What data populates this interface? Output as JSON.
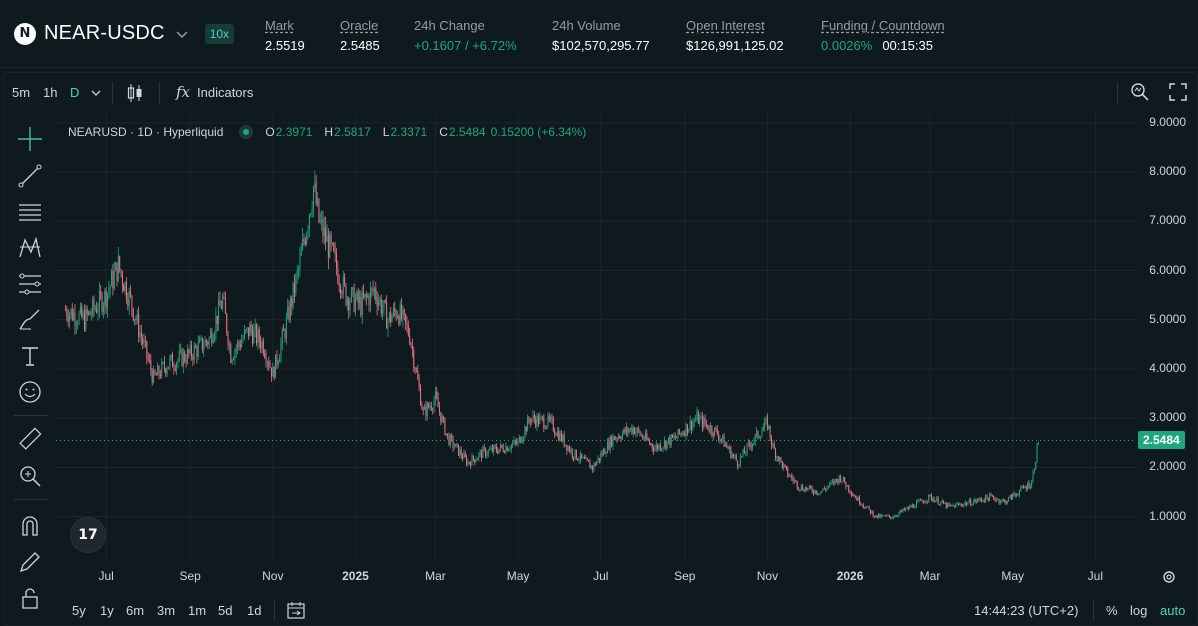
{
  "header": {
    "pair_logo_letter": "N",
    "pair_name": "NEAR-USDC",
    "leverage": "10x",
    "stats": [
      {
        "label": "Mark",
        "value": "2.5519"
      },
      {
        "label": "Oracle",
        "value": "2.5485"
      },
      {
        "label": "24h Change",
        "value": "+0.1607 / +6.72%"
      },
      {
        "label": "24h Volume",
        "value": "$102,570,295.77"
      },
      {
        "label": "Open Interest",
        "value": "$126,991,125.02"
      },
      {
        "label": "Funding / Countdown",
        "value": "0.0026%",
        "value2": "00:15:35"
      }
    ]
  },
  "toolbar": {
    "intervals": [
      "5m",
      "1h",
      "D"
    ],
    "active_interval": "D",
    "indicators_label": "Indicators",
    "fx_label": "fx"
  },
  "legend": {
    "symbol": "NEARUSD · 1D · Hyperliquid",
    "o_label": "O",
    "o": "2.3971",
    "h_label": "H",
    "h": "2.5817",
    "l_label": "L",
    "l": "2.3371",
    "c_label": "C",
    "c": "2.5484",
    "change": "0.15200 (+6.34%)"
  },
  "colors": {
    "up": "#1fa67d",
    "down": "#ed7088",
    "accent": "#50d2c1",
    "background": "#0f1a1f"
  },
  "chart_data": {
    "type": "candlestick",
    "title": "NEARUSD · 1D · Hyperliquid",
    "y_ticks": [
      "9.0000",
      "8.0000",
      "7.0000",
      "6.0000",
      "5.0000",
      "4.0000",
      "3.0000",
      "2.0000",
      "1.0000"
    ],
    "ylim": [
      0.1,
      9.2
    ],
    "x_ticks": [
      "Jul",
      "Sep",
      "Nov",
      "2025",
      "Mar",
      "May",
      "Jul",
      "Sep",
      "Nov",
      "2026",
      "Mar",
      "May",
      "Jul"
    ],
    "x_ticks_bold": [
      "2025",
      "2026"
    ],
    "last_price": "2.5484",
    "last_price_value": 2.5484,
    "series": [
      {
        "x": [
          "2024-06-01",
          "2024-06-15",
          "2024-07-01",
          "2024-07-10",
          "2024-07-20",
          "2024-08-05",
          "2024-08-15",
          "2024-09-01",
          "2024-09-15",
          "2024-09-25",
          "2024-10-01",
          "2024-10-15",
          "2024-10-25",
          "2024-11-01",
          "2024-11-10",
          "2024-11-20",
          "2024-12-01",
          "2024-12-05",
          "2024-12-15",
          "2024-12-25",
          "2025-01-05",
          "2025-01-15",
          "2025-01-25",
          "2025-02-01",
          "2025-02-10",
          "2025-02-20",
          "2025-03-01",
          "2025-03-10",
          "2025-03-25",
          "2025-04-05",
          "2025-04-20",
          "2025-05-01",
          "2025-05-10",
          "2025-05-25",
          "2025-06-10",
          "2025-06-25",
          "2025-07-10",
          "2025-07-25",
          "2025-08-10",
          "2025-08-25",
          "2025-09-10",
          "2025-09-25",
          "2025-10-05",
          "2025-10-10",
          "2025-10-20",
          "2025-11-01",
          "2025-11-05",
          "2025-11-15",
          "2025-11-25",
          "2025-12-10",
          "2025-12-25",
          "2026-01-05",
          "2026-01-20",
          "2026-02-01",
          "2026-02-15",
          "2026-03-01",
          "2026-03-15",
          "2026-04-01",
          "2026-04-15",
          "2026-04-25",
          "2026-05-05",
          "2026-05-15",
          "2026-05-20"
        ],
        "values": [
          5.2,
          5.0,
          5.5,
          6.1,
          5.3,
          3.8,
          4.1,
          4.3,
          4.6,
          5.4,
          4.3,
          4.8,
          4.5,
          3.9,
          4.8,
          6.0,
          7.7,
          7.0,
          6.3,
          5.5,
          5.3,
          5.6,
          5.0,
          5.2,
          4.7,
          3.1,
          3.4,
          2.6,
          2.1,
          2.3,
          2.4,
          2.5,
          3.0,
          2.9,
          2.3,
          2.0,
          2.6,
          2.8,
          2.4,
          2.6,
          3.0,
          2.7,
          2.3,
          2.1,
          2.5,
          2.9,
          2.4,
          1.9,
          1.6,
          1.5,
          1.8,
          1.4,
          1.0,
          1.0,
          1.2,
          1.4,
          1.2,
          1.3,
          1.4,
          1.3,
          1.5,
          1.7,
          2.55
        ]
      }
    ],
    "x_range": [
      "2024-05-25",
      "2026-07-31"
    ]
  },
  "xaxis_gear": "gear-icon",
  "bottombar": {
    "ranges": [
      "5y",
      "1y",
      "6m",
      "3m",
      "1m",
      "5d",
      "1d"
    ],
    "time": "14:44:23 (UTC+2)",
    "percent": "%",
    "log": "log",
    "auto": "auto"
  },
  "tv_logo": "17"
}
